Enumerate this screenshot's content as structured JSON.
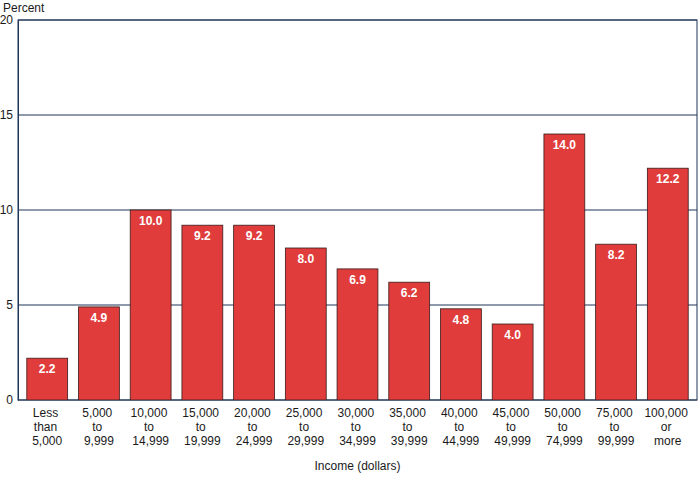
{
  "chart_data": {
    "type": "bar",
    "x_label": "Income (dollars)",
    "y_label": "Percent",
    "categories": [
      "Less than 5,000",
      "5,000 to 9,999",
      "10,000 to 14,999",
      "15,000 to 19,999",
      "20,000 to 24,999",
      "25,000 to 29,999",
      "30,000 to 34,999",
      "35,000 to 39,999",
      "40,000 to 44,999",
      "45,000 to 49,999",
      "50,000 to 74,999",
      "75,000 to 99,999",
      "100,000 or more"
    ],
    "values": [
      2.2,
      4.9,
      10.0,
      9.2,
      9.2,
      8.0,
      6.9,
      6.2,
      4.8,
      4.0,
      14.0,
      8.2,
      12.2
    ],
    "value_labels": [
      "2.2",
      "4.9",
      "10.0",
      "9.2",
      "9.2",
      "8.0",
      "6.9",
      "6.2",
      "4.8",
      "4.0",
      "14.0",
      "8.2",
      "12.2"
    ],
    "color": "#e03c3c",
    "ylim": [
      0,
      20
    ],
    "yticks": [
      0,
      5,
      10,
      15,
      20
    ],
    "grid": true,
    "data_labels": true
  }
}
